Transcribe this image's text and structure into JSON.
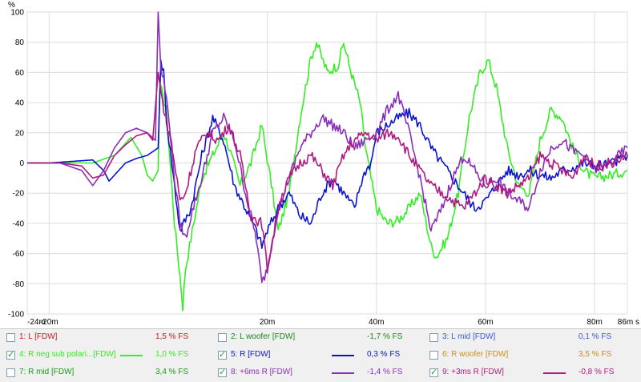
{
  "chart_data": {
    "type": "line",
    "ylabel": "%",
    "xunit": "s",
    "ylim": [
      -100,
      100
    ],
    "xlim": [
      -0.024,
      0.086
    ],
    "grid": true,
    "yticks": [
      "100",
      "80",
      "60",
      "40",
      "20",
      "0",
      "-20",
      "-40",
      "-60",
      "-80",
      "-100"
    ],
    "xticks": [
      {
        "v": -0.024,
        "label": "-24m"
      },
      {
        "v": -0.02,
        "label": "-20m"
      },
      {
        "v": 0.02,
        "label": "20m"
      },
      {
        "v": 0.04,
        "label": "40m"
      },
      {
        "v": 0.06,
        "label": "60m"
      },
      {
        "v": 0.08,
        "label": "80m"
      },
      {
        "v": 0.086,
        "label": "86m s"
      }
    ],
    "series": [
      {
        "name": "4: R neg sub polari...[FDW]",
        "color": "#33ee22",
        "points": [
          [
            -0.024,
            0
          ],
          [
            -0.012,
            0
          ],
          [
            -0.008,
            5
          ],
          [
            -0.005,
            17
          ],
          [
            -0.003,
            5
          ],
          [
            -0.002,
            -8
          ],
          [
            -0.001,
            -12
          ],
          [
            0,
            -5
          ],
          [
            0.0003,
            52
          ],
          [
            0.0015,
            35
          ],
          [
            0.003,
            -40
          ],
          [
            0.004,
            -75
          ],
          [
            0.0045,
            -95
          ],
          [
            0.005,
            -70
          ],
          [
            0.007,
            -30
          ],
          [
            0.008,
            -10
          ],
          [
            0.01,
            5
          ],
          [
            0.012,
            20
          ],
          [
            0.013,
            10
          ],
          [
            0.015,
            -15
          ],
          [
            0.017,
            0
          ],
          [
            0.019,
            25
          ],
          [
            0.021,
            -20
          ],
          [
            0.022,
            -45
          ],
          [
            0.024,
            -20
          ],
          [
            0.026,
            30
          ],
          [
            0.028,
            70
          ],
          [
            0.029,
            80
          ],
          [
            0.031,
            60
          ],
          [
            0.033,
            65
          ],
          [
            0.034,
            80
          ],
          [
            0.035,
            65
          ],
          [
            0.037,
            40
          ],
          [
            0.038,
            10
          ],
          [
            0.04,
            -30
          ],
          [
            0.042,
            -40
          ],
          [
            0.044,
            -38
          ],
          [
            0.046,
            -30
          ],
          [
            0.048,
            -20
          ],
          [
            0.05,
            -55
          ],
          [
            0.051,
            -62
          ],
          [
            0.053,
            -50
          ],
          [
            0.055,
            -20
          ],
          [
            0.057,
            30
          ],
          [
            0.058,
            45
          ],
          [
            0.059,
            60
          ],
          [
            0.0605,
            68
          ],
          [
            0.062,
            50
          ],
          [
            0.064,
            10
          ],
          [
            0.066,
            -15
          ],
          [
            0.068,
            -20
          ],
          [
            0.07,
            15
          ],
          [
            0.072,
            35
          ],
          [
            0.074,
            30
          ],
          [
            0.076,
            10
          ],
          [
            0.078,
            -5
          ],
          [
            0.08,
            -10
          ],
          [
            0.083,
            -8
          ],
          [
            0.086,
            -5
          ]
        ]
      },
      {
        "name": "5: R [FDW]",
        "color": "#0a14d0",
        "points": [
          [
            -0.024,
            0
          ],
          [
            -0.02,
            0
          ],
          [
            -0.012,
            2
          ],
          [
            -0.01,
            -5
          ],
          [
            -0.009,
            -12
          ],
          [
            -0.008,
            -8
          ],
          [
            -0.006,
            0
          ],
          [
            -0.004,
            3
          ],
          [
            -0.002,
            5
          ],
          [
            0,
            10
          ],
          [
            0.0005,
            68
          ],
          [
            0.001,
            60
          ],
          [
            0.0015,
            30
          ],
          [
            0.003,
            -15
          ],
          [
            0.004,
            -45
          ],
          [
            0.006,
            -30
          ],
          [
            0.008,
            5
          ],
          [
            0.01,
            30
          ],
          [
            0.012,
            15
          ],
          [
            0.014,
            -15
          ],
          [
            0.016,
            -30
          ],
          [
            0.018,
            -45
          ],
          [
            0.019,
            -55
          ],
          [
            0.02,
            -45
          ],
          [
            0.022,
            -30
          ],
          [
            0.024,
            -20
          ],
          [
            0.026,
            -35
          ],
          [
            0.028,
            -40
          ],
          [
            0.03,
            -20
          ],
          [
            0.032,
            -10
          ],
          [
            0.034,
            -20
          ],
          [
            0.036,
            -30
          ],
          [
            0.037,
            -15
          ],
          [
            0.038,
            -5
          ],
          [
            0.039,
            0
          ],
          [
            0.04,
            20
          ],
          [
            0.042,
            25
          ],
          [
            0.044,
            30
          ],
          [
            0.046,
            33
          ],
          [
            0.048,
            25
          ],
          [
            0.05,
            10
          ],
          [
            0.052,
            0
          ],
          [
            0.054,
            -10
          ],
          [
            0.056,
            -20
          ],
          [
            0.058,
            -30
          ],
          [
            0.06,
            -25
          ],
          [
            0.062,
            -15
          ],
          [
            0.064,
            -5
          ],
          [
            0.066,
            -8
          ],
          [
            0.068,
            -5
          ],
          [
            0.07,
            -8
          ],
          [
            0.072,
            -10
          ],
          [
            0.074,
            -5
          ],
          [
            0.076,
            -3
          ],
          [
            0.078,
            0
          ],
          [
            0.08,
            -2
          ],
          [
            0.083,
            0
          ],
          [
            0.086,
            5
          ]
        ]
      },
      {
        "name": "8: +6ms R [FDW]",
        "color": "#8a2fb8",
        "points": [
          [
            -0.024,
            0
          ],
          [
            -0.018,
            0
          ],
          [
            -0.014,
            -5
          ],
          [
            -0.012,
            -15
          ],
          [
            -0.01,
            -5
          ],
          [
            -0.008,
            10
          ],
          [
            -0.006,
            20
          ],
          [
            -0.004,
            23
          ],
          [
            -0.002,
            20
          ],
          [
            -0.0005,
            15
          ],
          [
            0,
            100
          ],
          [
            0.0005,
            62
          ],
          [
            0.001,
            55
          ],
          [
            0.002,
            30
          ],
          [
            0.003,
            -10
          ],
          [
            0.004,
            -40
          ],
          [
            0.005,
            -50
          ],
          [
            0.006,
            -35
          ],
          [
            0.008,
            -10
          ],
          [
            0.01,
            20
          ],
          [
            0.012,
            30
          ],
          [
            0.014,
            15
          ],
          [
            0.016,
            -20
          ],
          [
            0.018,
            -50
          ],
          [
            0.019,
            -80
          ],
          [
            0.02,
            -70
          ],
          [
            0.022,
            -30
          ],
          [
            0.024,
            -10
          ],
          [
            0.026,
            10
          ],
          [
            0.028,
            20
          ],
          [
            0.03,
            30
          ],
          [
            0.032,
            25
          ],
          [
            0.034,
            20
          ],
          [
            0.036,
            10
          ],
          [
            0.038,
            15
          ],
          [
            0.04,
            20
          ],
          [
            0.042,
            35
          ],
          [
            0.044,
            45
          ],
          [
            0.046,
            20
          ],
          [
            0.048,
            -10
          ],
          [
            0.05,
            -45
          ],
          [
            0.052,
            -30
          ],
          [
            0.054,
            -10
          ],
          [
            0.056,
            5
          ],
          [
            0.058,
            -5
          ],
          [
            0.06,
            -15
          ],
          [
            0.062,
            -10
          ],
          [
            0.064,
            -20
          ],
          [
            0.066,
            -25
          ],
          [
            0.068,
            -30
          ],
          [
            0.07,
            -5
          ],
          [
            0.072,
            10
          ],
          [
            0.074,
            15
          ],
          [
            0.076,
            8
          ],
          [
            0.078,
            5
          ],
          [
            0.08,
            -5
          ],
          [
            0.083,
            0
          ],
          [
            0.086,
            10
          ]
        ]
      },
      {
        "name": "9: +3ms R [FDW]",
        "color": "#b01a7e",
        "points": [
          [
            -0.024,
            0
          ],
          [
            -0.018,
            0
          ],
          [
            -0.014,
            -2
          ],
          [
            -0.012,
            -10
          ],
          [
            -0.01,
            -8
          ],
          [
            -0.008,
            5
          ],
          [
            -0.006,
            12
          ],
          [
            -0.004,
            18
          ],
          [
            -0.002,
            20
          ],
          [
            -0.001,
            15
          ],
          [
            0,
            60
          ],
          [
            0.0008,
            40
          ],
          [
            0.002,
            20
          ],
          [
            0.003,
            0
          ],
          [
            0.004,
            -25
          ],
          [
            0.005,
            -20
          ],
          [
            0.007,
            10
          ],
          [
            0.009,
            20
          ],
          [
            0.011,
            15
          ],
          [
            0.013,
            25
          ],
          [
            0.015,
            5
          ],
          [
            0.017,
            -35
          ],
          [
            0.019,
            -40
          ],
          [
            0.02,
            -70
          ],
          [
            0.022,
            -30
          ],
          [
            0.024,
            -10
          ],
          [
            0.026,
            0
          ],
          [
            0.028,
            5
          ],
          [
            0.03,
            -5
          ],
          [
            0.032,
            -15
          ],
          [
            0.034,
            5
          ],
          [
            0.036,
            15
          ],
          [
            0.038,
            20
          ],
          [
            0.04,
            15
          ],
          [
            0.042,
            20
          ],
          [
            0.044,
            18
          ],
          [
            0.046,
            5
          ],
          [
            0.048,
            -5
          ],
          [
            0.05,
            -15
          ],
          [
            0.052,
            -20
          ],
          [
            0.054,
            -25
          ],
          [
            0.056,
            -30
          ],
          [
            0.058,
            -20
          ],
          [
            0.06,
            -10
          ],
          [
            0.062,
            -15
          ],
          [
            0.064,
            -20
          ],
          [
            0.066,
            -15
          ],
          [
            0.068,
            -10
          ],
          [
            0.07,
            5
          ],
          [
            0.072,
            0
          ],
          [
            0.074,
            -5
          ],
          [
            0.076,
            -10
          ],
          [
            0.078,
            5
          ],
          [
            0.08,
            -2
          ],
          [
            0.083,
            0
          ],
          [
            0.086,
            5
          ]
        ]
      }
    ]
  },
  "legend": [
    [
      {
        "checked": false,
        "label": "1: L [FDW]",
        "color": "#c02020",
        "swatch": false,
        "value": "1,5 % FS"
      },
      {
        "checked": false,
        "label": "2: L woofer [FDW]",
        "color": "#1a8a1a",
        "swatch": false,
        "value": "-1,7 % FS"
      },
      {
        "checked": false,
        "label": "3: L mid [FDW]",
        "color": "#3a5ad8",
        "swatch": false,
        "value": "0,1 % FS"
      }
    ],
    [
      {
        "checked": true,
        "label": "4: R neg sub polari...[FDW]",
        "color": "#33ee22",
        "swatch": true,
        "value": "1,0 % FS"
      },
      {
        "checked": true,
        "label": "5: R [FDW]",
        "color": "#0a14d0",
        "swatch": true,
        "value": "0,3 % FS"
      },
      {
        "checked": false,
        "label": "6: R woofer [FDW]",
        "color": "#c89010",
        "swatch": false,
        "value": "3,5 % FS"
      }
    ],
    [
      {
        "checked": false,
        "label": "7: R mid [FDW]",
        "color": "#1a9a1a",
        "swatch": false,
        "value": "3,4 % FS"
      },
      {
        "checked": true,
        "label": "8: +6ms R [FDW]",
        "color": "#8a2fb8",
        "swatch": true,
        "value": "-1,4 % FS"
      },
      {
        "checked": true,
        "label": "9: +3ms R [FDW]",
        "color": "#b01a7e",
        "swatch": true,
        "value": "-0,8 % FS"
      }
    ]
  ],
  "checkmark": "✓"
}
